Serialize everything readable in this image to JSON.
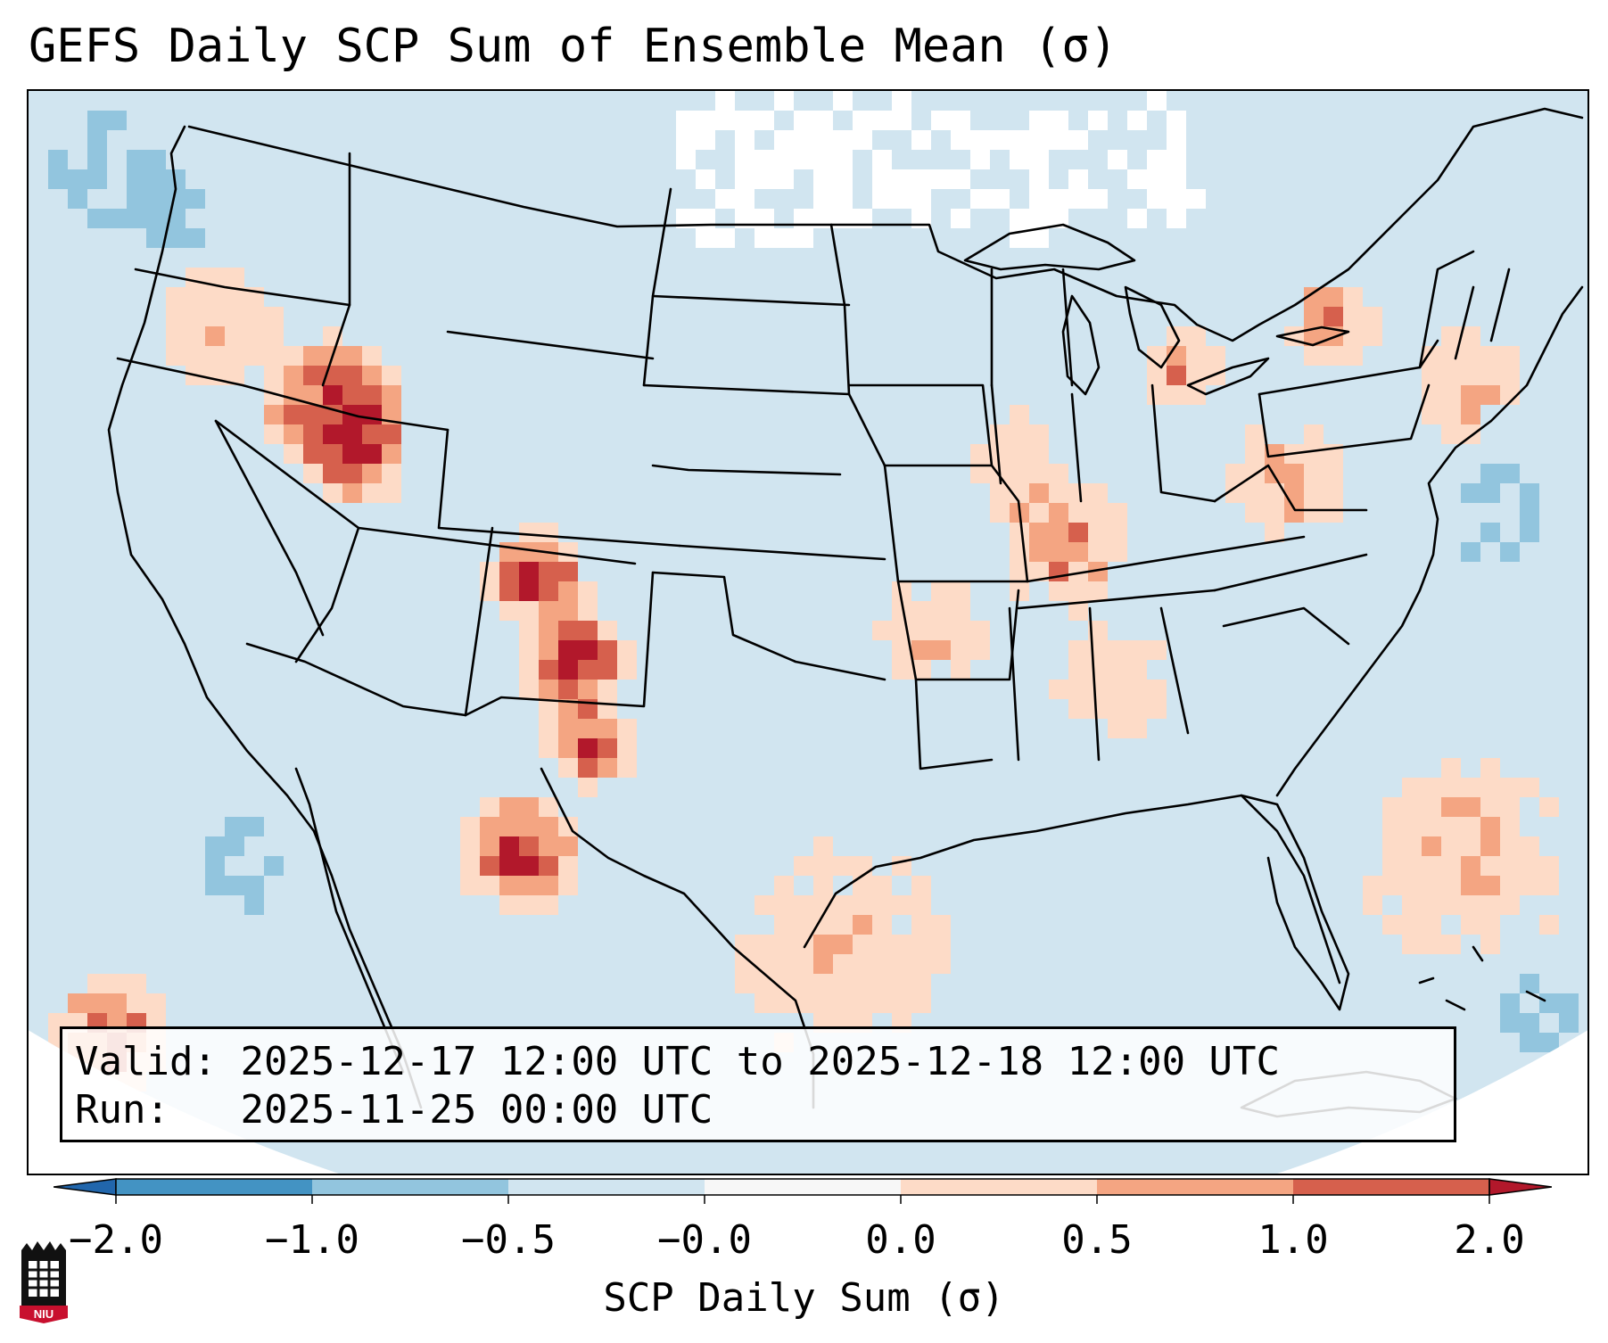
{
  "title": "GEFS Daily SCP Sum of Ensemble Mean (σ)",
  "info": {
    "valid_label": "Valid:",
    "valid_value": "2025-12-17 12:00 UTC to 2025-12-18 12:00 UTC",
    "run_label": "Run:",
    "run_value": "2025-11-25 00:00 UTC"
  },
  "colorbar": {
    "label": "SCP Daily Sum (σ)",
    "ticks": [
      "−2.0",
      "−1.0",
      "−0.5",
      "−0.0",
      "0.0",
      "0.5",
      "1.0",
      "2.0"
    ],
    "colors": {
      "below_min": "#2166ac",
      "n2_n1": "#4393c3",
      "n1_n05": "#92c5de",
      "n05_0": "#d1e5f0",
      "zero": "#f7f7f7",
      "p0_p05": "#fddbc7",
      "p05_p1": "#f4a582",
      "p1_p2": "#d6604d",
      "above_max": "#b2182b"
    }
  },
  "map": {
    "background": "#d1e5f0",
    "boundaries_color": "#000000"
  },
  "logo": {
    "text": "NIU",
    "icon": "niu-logo-icon"
  }
}
